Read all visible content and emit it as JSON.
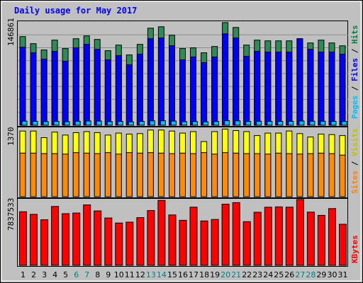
{
  "chart_data": {
    "type": "bar",
    "title": "Daily usage for May 2017",
    "categories": [
      "1",
      "2",
      "3",
      "4",
      "5",
      "6",
      "7",
      "8",
      "9",
      "10",
      "11",
      "12",
      "13",
      "14",
      "15",
      "16",
      "17",
      "18",
      "19",
      "20",
      "21",
      "22",
      "23",
      "24",
      "25",
      "26",
      "27",
      "28",
      "29",
      "30",
      "31"
    ],
    "weekend_days": [
      "6",
      "7",
      "13",
      "14",
      "20",
      "21",
      "27",
      "28"
    ],
    "panels": [
      {
        "id": "traffic",
        "ymax_label": "146861",
        "ymax": 146861,
        "series_labels": [
          {
            "name": "Pages",
            "color": "#00c0ff"
          },
          {
            "name": "Files",
            "color": "#0000ff"
          },
          {
            "name": "Hits",
            "color": "#008040"
          }
        ],
        "separator": " / ",
        "series": [
          {
            "name": "Hits",
            "color": "#2e8b57",
            "values": [
              126000,
              116000,
              107000,
              121000,
              109000,
              123000,
              127000,
              122000,
              106000,
              114000,
              100000,
              115000,
              138000,
              140000,
              128000,
              109000,
              110000,
              103000,
              112000,
              146000,
              139000,
              114000,
              121000,
              120000,
              120000,
              120000,
              123000,
              117000,
              121000,
              117000,
              113000
            ]
          },
          {
            "name": "Files",
            "color": "#0000ff",
            "values": [
              111000,
              103000,
              94000,
              105000,
              91000,
              110000,
              115000,
              108000,
              93000,
              99000,
              86000,
              101000,
              123000,
              124000,
              113000,
              93000,
              97000,
              89000,
              97000,
              130000,
              124000,
              98000,
              105000,
              104000,
              104000,
              104000,
              123000,
              108000,
              104000,
              104000,
              101000
            ]
          },
          {
            "name": "Pages",
            "color": "#00c0ff",
            "values": [
              5800,
              5500,
              5200,
              5500,
              5000,
              5600,
              6000,
              5900,
              5100,
              5400,
              4800,
              5500,
              6200,
              6300,
              5900,
              5100,
              5300,
              4900,
              5300,
              6400,
              6200,
              5300,
              5600,
              5500,
              5500,
              5500,
              6000,
              5700,
              5700,
              5500,
              5400
            ]
          }
        ]
      },
      {
        "id": "visitors",
        "ymax_label": "1370",
        "ymax": 1370,
        "series_labels": [
          {
            "name": "Sites",
            "color": "#ff8000"
          },
          {
            "name": "Visits",
            "color": "#ffff00"
          }
        ],
        "separator": " / ",
        "series": [
          {
            "name": "Visits",
            "color": "#ffff00",
            "values": [
              1310,
              1310,
              1180,
              1290,
              1230,
              1280,
              1300,
              1280,
              1230,
              1270,
              1250,
              1260,
              1330,
              1330,
              1310,
              1270,
              1300,
              1100,
              1300,
              1350,
              1320,
              1300,
              1220,
              1270,
              1270,
              1310,
              1260,
              1190,
              1250,
              1240,
              1220
            ]
          },
          {
            "name": "Sites",
            "color": "#ff8c00",
            "values": [
              870,
              870,
              860,
              860,
              850,
              880,
              870,
              860,
              880,
              850,
              880,
              870,
              880,
              870,
              860,
              870,
              860,
              880,
              850,
              880,
              870,
              860,
              860,
              850,
              870,
              860,
              850,
              860,
              870,
              860,
              830
            ]
          }
        ]
      },
      {
        "id": "kbytes",
        "ymax_label": "7837533",
        "ymax": 7837533,
        "series_labels": [
          {
            "name": "KBytes",
            "color": "#ff0000"
          }
        ],
        "separator": "",
        "series": [
          {
            "name": "KBytes",
            "color": "#ff0000",
            "values": [
              6380000,
              6070000,
              5430000,
              7010000,
              6150000,
              6230000,
              7200000,
              6480000,
              5640000,
              5040000,
              5140000,
              5680000,
              6520000,
              7740000,
              6000000,
              5360000,
              6930000,
              5280000,
              5460000,
              7280000,
              7470000,
              5200000,
              6320000,
              6920000,
              6960000,
              6930000,
              7837533,
              6340000,
              5950000,
              6760000,
              4890000
            ]
          }
        ]
      }
    ]
  },
  "colors": {
    "background": "#c0c0c0",
    "plot_background": "#c0c0c0",
    "title_color": "#0000ff",
    "weekday_label_color": "#000000",
    "weekend_label_color": "#008080",
    "border_color": "#000000",
    "grid_color": "#808080"
  }
}
